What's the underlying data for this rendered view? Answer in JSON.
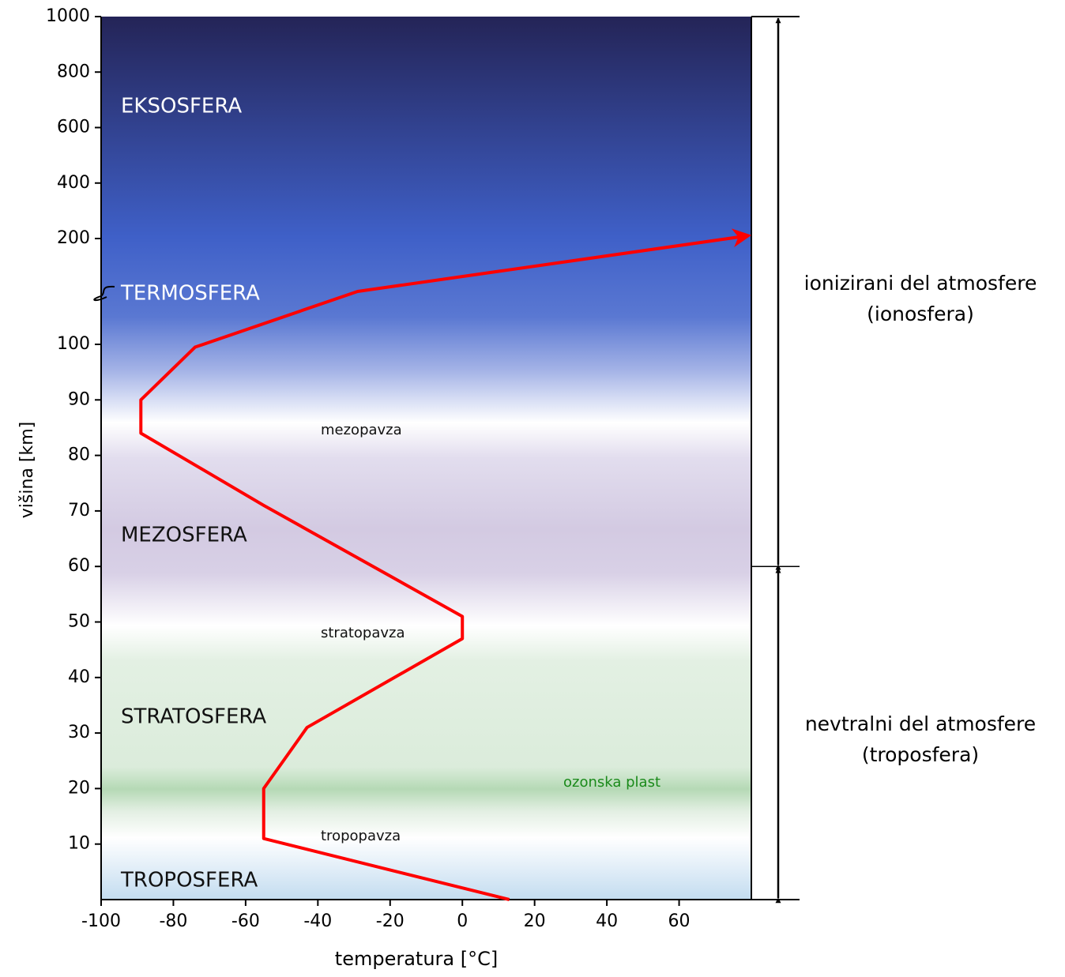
{
  "chart_data": {
    "type": "line",
    "xlabel": "temperatura [°C]",
    "ylabel": "višina [km]",
    "x": [
      13,
      -55,
      -55,
      -43,
      0,
      0,
      -55,
      -89,
      -89,
      -74,
      -29,
      79
    ],
    "series": [
      {
        "color": "#ff0000",
        "values": [
          0,
          11,
          20,
          31,
          47,
          51,
          71,
          84,
          90,
          99.5,
          150,
          210
        ]
      }
    ],
    "xlim": [
      -100,
      80
    ],
    "xticks": [
      -100,
      -80,
      -60,
      -40,
      -20,
      0,
      20,
      40,
      60
    ],
    "ylim": [
      0,
      1000
    ],
    "ybreak": [
      100,
      200
    ],
    "yticks": [
      10,
      20,
      30,
      40,
      50,
      60,
      70,
      80,
      90,
      100,
      200,
      400,
      600,
      800,
      1000
    ],
    "layers": [
      "EKSOSFERA",
      "TERMOSFERA",
      "MEZOSFERA",
      "STRATOSFERA",
      "TROPOSFERA"
    ],
    "pauses": [
      "mezopavza",
      "stratopavza",
      "tropopavza"
    ],
    "ozone": "ozonska plast",
    "regions": [
      {
        "label": "ionizirani del atmosfere",
        "sublabel": "(ionosfera)",
        "range": [
          60,
          1000
        ]
      },
      {
        "label": "nevtralni del atmosfere",
        "sublabel": "(troposfera)",
        "range": [
          0,
          60
        ]
      }
    ]
  }
}
